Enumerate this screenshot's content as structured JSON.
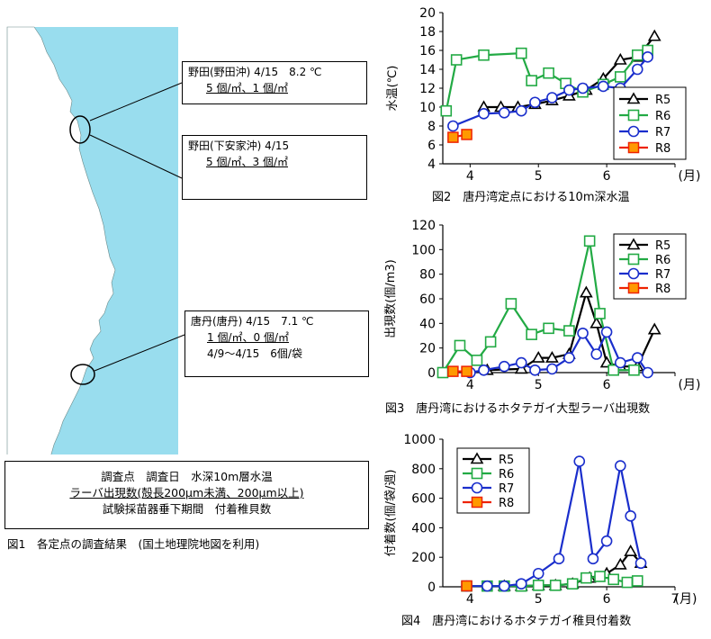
{
  "map": {
    "sea_color": "#99ddee",
    "land_color": "#ffffff",
    "callout_noda_oki": {
      "line1": "野田(野田沖) 4/15　8.2 ℃",
      "line2": "5 個/㎡、1 個/㎡"
    },
    "callout_noda_shimo": {
      "line1": "野田(下安家沖) 4/15",
      "line2": "5 個/㎡、3 個/㎡"
    },
    "callout_karaniwa": {
      "line1": "唐丹(唐丹) 4/15　7.1 ℃",
      "line2": "1 個/㎡、0 個/㎡",
      "line3": "4/9～4/15　6個/袋"
    },
    "legend": {
      "line1": "調査点　調査日　水深10m層水温",
      "line2": "ラーバ出現数(殻長200μm未満、200μm以上)",
      "line3": "試験採苗器垂下期間　付着稚貝数"
    },
    "caption": "図1　各定点の調査結果　(国土地理院地図を利用)"
  },
  "chart_data": [
    {
      "type": "line",
      "caption": "図2　唐丹湾定点における10m深水温",
      "ylabel": "水温(℃)",
      "xunit": "(月)",
      "xlim": [
        3.6,
        7.0
      ],
      "ylim": [
        4,
        20
      ],
      "xticks": [
        4,
        5,
        6,
        7
      ],
      "xtick_labels": [
        "4",
        "5",
        "6",
        ""
      ],
      "yticks": [
        4,
        6,
        8,
        10,
        12,
        14,
        16,
        18,
        20
      ],
      "legend_position": "right-center",
      "series": [
        {
          "name": "R5",
          "color": "#000000",
          "marker": "triangle",
          "x": [
            4.2,
            4.45,
            4.7,
            4.95,
            5.2,
            5.45,
            5.7,
            5.95,
            6.2,
            6.45,
            6.7
          ],
          "y": [
            10,
            10,
            10,
            10.3,
            10.7,
            11.2,
            11.8,
            13,
            15,
            15.3,
            17.5
          ]
        },
        {
          "name": "R6",
          "color": "#22aa44",
          "marker": "square",
          "x": [
            3.65,
            3.8,
            4.2,
            4.75,
            4.9,
            5.15,
            5.4,
            5.65,
            5.95,
            6.2,
            6.45,
            6.6
          ],
          "y": [
            9.6,
            15,
            15.5,
            15.7,
            12.8,
            13.6,
            12.5,
            11.6,
            12.4,
            13.2,
            15.5,
            16
          ]
        },
        {
          "name": "R7",
          "color": "#1a2ecc",
          "marker": "circle",
          "x": [
            3.75,
            4.2,
            4.5,
            4.75,
            4.95,
            5.2,
            5.45,
            5.65,
            5.95,
            6.2,
            6.45,
            6.6
          ],
          "y": [
            8,
            9.3,
            9.4,
            9.6,
            10.5,
            11,
            11.8,
            12,
            12.2,
            12,
            14,
            15.3
          ]
        },
        {
          "name": "R8",
          "color": "#ee2200",
          "fill": "#ff9900",
          "marker": "square",
          "x": [
            3.75,
            3.95
          ],
          "y": [
            6.8,
            7.1
          ]
        }
      ]
    },
    {
      "type": "line",
      "caption": "図3　唐丹湾におけるホタテガイ大型ラーバ出現数",
      "ylabel": "出現数(個/m3)",
      "xunit": "(月)",
      "xlim": [
        3.6,
        7.0
      ],
      "ylim": [
        0,
        120
      ],
      "xticks": [
        4,
        5,
        6,
        7
      ],
      "xtick_labels": [
        "4",
        "5",
        "6",
        ""
      ],
      "yticks": [
        0,
        20,
        40,
        60,
        80,
        100,
        120
      ],
      "legend_position": "top-right",
      "series": [
        {
          "name": "R5",
          "color": "#000000",
          "marker": "triangle",
          "x": [
            4.25,
            4.75,
            5.0,
            5.2,
            5.45,
            5.7,
            5.85,
            6.0,
            6.2,
            6.45,
            6.7
          ],
          "y": [
            2,
            3,
            12,
            12,
            15,
            65,
            40,
            8,
            5,
            5,
            35
          ]
        },
        {
          "name": "R6",
          "color": "#22aa44",
          "marker": "square",
          "x": [
            3.6,
            3.85,
            4.1,
            4.3,
            4.6,
            4.9,
            5.15,
            5.45,
            5.75,
            5.9,
            6.1,
            6.4
          ],
          "y": [
            0,
            22,
            10,
            25,
            56,
            31,
            36,
            34,
            107,
            48,
            2,
            2
          ]
        },
        {
          "name": "R7",
          "color": "#1a2ecc",
          "marker": "circle",
          "x": [
            4.0,
            4.2,
            4.5,
            4.75,
            4.95,
            5.2,
            5.45,
            5.65,
            5.85,
            6.0,
            6.2,
            6.45,
            6.6
          ],
          "y": [
            0,
            2,
            5,
            8,
            2,
            3,
            12,
            32,
            15,
            33,
            8,
            12,
            0
          ]
        },
        {
          "name": "R8",
          "color": "#ee2200",
          "fill": "#ff9900",
          "marker": "square",
          "x": [
            3.75,
            3.95
          ],
          "y": [
            1,
            1
          ]
        }
      ]
    },
    {
      "type": "line",
      "caption": "図4　唐丹湾におけるホタテガイ稚貝付着数",
      "ylabel": "付着数(個/袋/週)",
      "xunit": "(月)",
      "xlim": [
        3.6,
        7.0
      ],
      "ylim": [
        0,
        1000
      ],
      "xticks": [
        4,
        5,
        6,
        7
      ],
      "xtick_labels": [
        "4",
        "5",
        "6",
        "7"
      ],
      "yticks": [
        0,
        200,
        400,
        600,
        800,
        1000
      ],
      "legend_position": "top-left",
      "series": [
        {
          "name": "R5",
          "color": "#000000",
          "marker": "triangle",
          "x": [
            4.5,
            4.75,
            5.0,
            5.25,
            5.5,
            5.75,
            6.0,
            6.2,
            6.35,
            6.5
          ],
          "y": [
            5,
            5,
            10,
            10,
            20,
            60,
            90,
            150,
            240,
            160
          ]
        },
        {
          "name": "R6",
          "color": "#22aa44",
          "marker": "square",
          "x": [
            3.95,
            4.25,
            4.5,
            4.75,
            5.0,
            5.25,
            5.5,
            5.7,
            5.9,
            6.1,
            6.3,
            6.45
          ],
          "y": [
            5,
            5,
            5,
            5,
            10,
            10,
            20,
            60,
            70,
            50,
            30,
            40
          ]
        },
        {
          "name": "R7",
          "color": "#1a2ecc",
          "marker": "circle",
          "x": [
            3.95,
            4.25,
            4.5,
            4.75,
            5.0,
            5.3,
            5.6,
            5.8,
            6.0,
            6.2,
            6.35,
            6.5
          ],
          "y": [
            5,
            5,
            5,
            20,
            90,
            190,
            850,
            190,
            310,
            820,
            480,
            160
          ]
        },
        {
          "name": "R8",
          "color": "#ee2200",
          "fill": "#ff9900",
          "marker": "square",
          "x": [
            3.95
          ],
          "y": [
            6
          ]
        }
      ]
    }
  ]
}
